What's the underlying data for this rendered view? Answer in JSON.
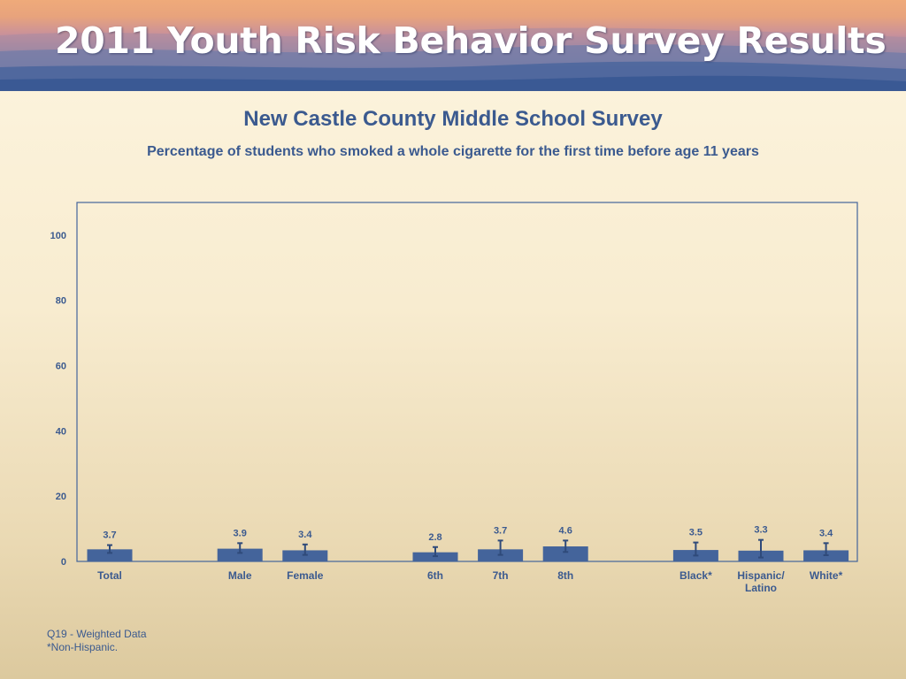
{
  "banner": {
    "title": "2011 Youth Risk Behavior Survey Results"
  },
  "chart_data": {
    "type": "bar",
    "title": "New Castle County Middle School Survey",
    "subtitle": "Percentage of students who smoked a whole cigarette for the first time before age 11 years",
    "xlabel": "",
    "ylabel": "",
    "ylim": [
      0,
      110
    ],
    "yticks": [
      0,
      20,
      40,
      60,
      80,
      100
    ],
    "grid": false,
    "legend": "none",
    "categories": [
      "Total",
      "Male",
      "Female",
      "6th",
      "7th",
      "8th",
      "Black*",
      "Hispanic/ Latino",
      "White*"
    ],
    "category_lines": [
      [
        "Total"
      ],
      [
        "Male"
      ],
      [
        "Female"
      ],
      [
        "6th"
      ],
      [
        "7th"
      ],
      [
        "8th"
      ],
      [
        "Black*"
      ],
      [
        "Hispanic/",
        "Latino"
      ],
      [
        "White*"
      ]
    ],
    "groups": [
      [
        "Total"
      ],
      [
        "Male",
        "Female"
      ],
      [
        "6th",
        "7th",
        "8th"
      ],
      [
        "Black*",
        "Hispanic/ Latino",
        "White*"
      ]
    ],
    "values": [
      3.7,
      3.9,
      3.4,
      2.8,
      3.7,
      4.6,
      3.5,
      3.3,
      3.4
    ],
    "error_bars": [
      [
        2.6,
        5.0
      ],
      [
        2.6,
        5.6
      ],
      [
        2.0,
        5.2
      ],
      [
        1.6,
        4.4
      ],
      [
        2.0,
        6.4
      ],
      [
        2.9,
        6.4
      ],
      [
        1.8,
        5.8
      ],
      [
        1.2,
        6.6
      ],
      [
        1.9,
        5.6
      ]
    ],
    "bar_color": "#44649b",
    "error_color": "#2f4a7a"
  },
  "footnotes": [
    "Q19 - Weighted Data",
    "*Non-Hispanic."
  ]
}
